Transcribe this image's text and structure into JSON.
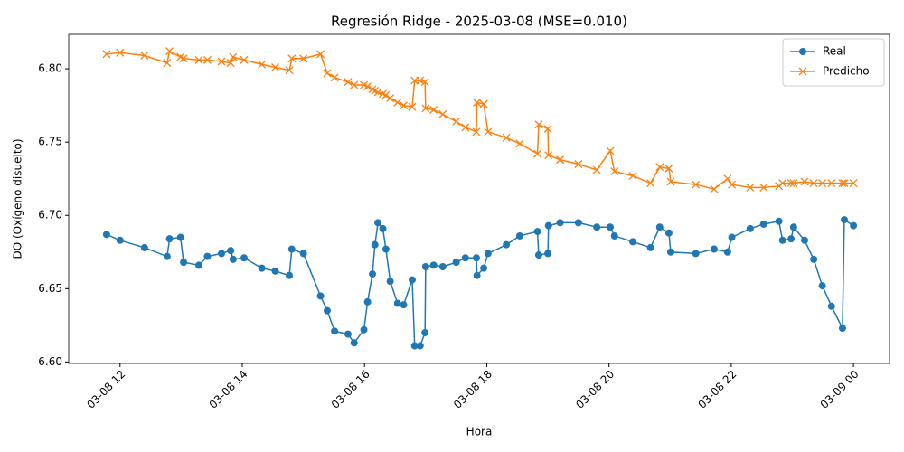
{
  "chart_data": {
    "type": "line",
    "title": "Regresión Ridge - 2025-03-08 (MSE=0.010)",
    "x_label": "Hora",
    "y_label": "DO (Oxígeno disuelto)",
    "x": [
      11.78,
      12.0,
      12.4,
      12.77,
      12.81,
      12.99,
      13.04,
      13.29,
      13.43,
      13.66,
      13.81,
      13.85,
      14.03,
      14.32,
      14.54,
      14.77,
      14.81,
      15.0,
      15.28,
      15.39,
      15.51,
      15.73,
      15.83,
      15.99,
      16.05,
      16.13,
      16.17,
      16.22,
      16.3,
      16.35,
      16.42,
      16.54,
      16.64,
      16.78,
      16.82,
      16.91,
      16.99,
      17.0,
      17.13,
      17.28,
      17.5,
      17.65,
      17.83,
      17.84,
      17.95,
      18.02,
      18.32,
      18.54,
      18.83,
      18.85,
      19.0,
      19.01,
      19.2,
      19.5,
      19.8,
      20.02,
      20.09,
      20.39,
      20.68,
      20.83,
      20.98,
      21.01,
      21.42,
      21.72,
      21.94,
      22.01,
      22.31,
      22.53,
      22.78,
      22.84,
      22.98,
      23.02,
      23.2,
      23.35,
      23.49,
      23.64,
      23.82,
      23.85,
      24.0
    ],
    "series": [
      {
        "name": "Real",
        "color": "#1f77b4",
        "marker": "circle",
        "values": [
          6.687,
          6.683,
          6.678,
          6.672,
          6.684,
          6.685,
          6.668,
          6.666,
          6.672,
          6.674,
          6.676,
          6.67,
          6.671,
          6.664,
          6.662,
          6.659,
          6.677,
          6.674,
          6.645,
          6.635,
          6.621,
          6.619,
          6.613,
          6.622,
          6.641,
          6.66,
          6.68,
          6.695,
          6.691,
          6.677,
          6.655,
          6.64,
          6.639,
          6.656,
          6.611,
          6.611,
          6.62,
          6.665,
          6.666,
          6.665,
          6.668,
          6.671,
          6.671,
          6.659,
          6.664,
          6.674,
          6.68,
          6.686,
          6.689,
          6.673,
          6.674,
          6.693,
          6.695,
          6.695,
          6.692,
          6.692,
          6.686,
          6.682,
          6.678,
          6.692,
          6.688,
          6.675,
          6.674,
          6.677,
          6.675,
          6.685,
          6.691,
          6.694,
          6.696,
          6.683,
          6.684,
          6.692,
          6.683,
          6.67,
          6.652,
          6.638,
          6.623,
          6.697,
          6.693
        ]
      },
      {
        "name": "Predicho",
        "color": "#ff7f0e",
        "marker": "x",
        "values": [
          6.81,
          6.811,
          6.809,
          6.804,
          6.812,
          6.808,
          6.807,
          6.806,
          6.806,
          6.805,
          6.804,
          6.808,
          6.806,
          6.803,
          6.801,
          6.799,
          6.807,
          6.807,
          6.81,
          6.797,
          6.794,
          6.791,
          6.789,
          6.789,
          6.788,
          6.786,
          6.785,
          6.784,
          6.783,
          6.782,
          6.78,
          6.777,
          6.775,
          6.774,
          6.792,
          6.792,
          6.791,
          6.773,
          6.772,
          6.769,
          6.764,
          6.76,
          6.757,
          6.777,
          6.776,
          6.757,
          6.753,
          6.749,
          6.742,
          6.762,
          6.759,
          6.741,
          6.738,
          6.735,
          6.731,
          6.744,
          6.73,
          6.727,
          6.722,
          6.733,
          6.732,
          6.723,
          6.721,
          6.718,
          6.725,
          6.721,
          6.719,
          6.719,
          6.72,
          6.722,
          6.722,
          6.722,
          6.723,
          6.722,
          6.722,
          6.722,
          6.722,
          6.722,
          6.722
        ]
      }
    ],
    "xlim": [
      11.16,
      24.59
    ],
    "xticks": [
      {
        "value": 12,
        "label": "03-08 12"
      },
      {
        "value": 14,
        "label": "03-08 14"
      },
      {
        "value": 16,
        "label": "03-08 16"
      },
      {
        "value": 18,
        "label": "03-08 18"
      },
      {
        "value": 20,
        "label": "03-08 20"
      },
      {
        "value": 22,
        "label": "03-08 22"
      },
      {
        "value": 24,
        "label": "03-09 00"
      }
    ],
    "ylim": [
      6.599,
      6.8235
    ],
    "yticks": [
      {
        "value": 6.6,
        "label": "6.60"
      },
      6.65,
      {
        "value": 6.7,
        "label": "6.70"
      },
      6.75,
      {
        "value": 6.8,
        "label": "6.80"
      }
    ],
    "legend": "upper right"
  }
}
